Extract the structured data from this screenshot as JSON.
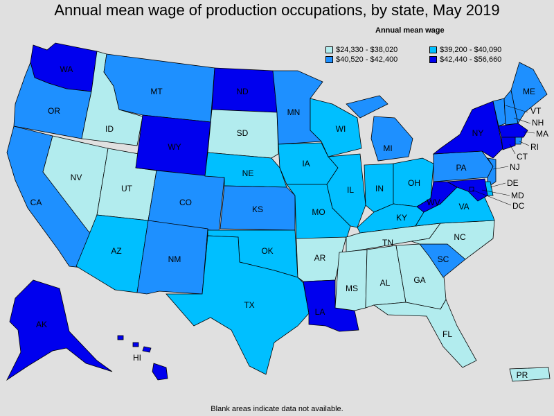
{
  "title": "Annual mean wage of production occupations, by state, May 2019",
  "legend": {
    "title": "Annual mean wage",
    "bins": [
      {
        "label": "$24,330 - $38,020",
        "color": "#b2ecee"
      },
      {
        "label": "$39,200 - $40,090",
        "color": "#00bfff"
      },
      {
        "label": "$40,520 - $42,400",
        "color": "#1e90ff"
      },
      {
        "label": "$42,440 - $56,660",
        "color": "#0000ee"
      }
    ]
  },
  "footnote": "Blank areas indicate data not available.",
  "states": [
    {
      "abbr": "WA",
      "bin": 3
    },
    {
      "abbr": "OR",
      "bin": 2
    },
    {
      "abbr": "CA",
      "bin": 2
    },
    {
      "abbr": "ID",
      "bin": 0
    },
    {
      "abbr": "NV",
      "bin": 0
    },
    {
      "abbr": "UT",
      "bin": 0
    },
    {
      "abbr": "AZ",
      "bin": 1
    },
    {
      "abbr": "MT",
      "bin": 2
    },
    {
      "abbr": "WY",
      "bin": 3
    },
    {
      "abbr": "CO",
      "bin": 2
    },
    {
      "abbr": "NM",
      "bin": 2
    },
    {
      "abbr": "ND",
      "bin": 3
    },
    {
      "abbr": "SD",
      "bin": 0
    },
    {
      "abbr": "NE",
      "bin": 1
    },
    {
      "abbr": "KS",
      "bin": 2
    },
    {
      "abbr": "OK",
      "bin": 1
    },
    {
      "abbr": "TX",
      "bin": 1
    },
    {
      "abbr": "MN",
      "bin": 2
    },
    {
      "abbr": "IA",
      "bin": 1
    },
    {
      "abbr": "MO",
      "bin": 1
    },
    {
      "abbr": "AR",
      "bin": 0
    },
    {
      "abbr": "LA",
      "bin": 3
    },
    {
      "abbr": "WI",
      "bin": 1
    },
    {
      "abbr": "IL",
      "bin": 1
    },
    {
      "abbr": "MI",
      "bin": 2
    },
    {
      "abbr": "IN",
      "bin": 1
    },
    {
      "abbr": "OH",
      "bin": 1
    },
    {
      "abbr": "KY",
      "bin": 1
    },
    {
      "abbr": "TN",
      "bin": 0
    },
    {
      "abbr": "MS",
      "bin": 0
    },
    {
      "abbr": "AL",
      "bin": 0
    },
    {
      "abbr": "GA",
      "bin": 0
    },
    {
      "abbr": "FL",
      "bin": 0
    },
    {
      "abbr": "SC",
      "bin": 2
    },
    {
      "abbr": "NC",
      "bin": 0
    },
    {
      "abbr": "VA",
      "bin": 1
    },
    {
      "abbr": "WV",
      "bin": 3
    },
    {
      "abbr": "PA",
      "bin": 2
    },
    {
      "abbr": "NY",
      "bin": 3
    },
    {
      "abbr": "VT",
      "bin": 2
    },
    {
      "abbr": "NH",
      "bin": 2
    },
    {
      "abbr": "ME",
      "bin": 2
    },
    {
      "abbr": "MA",
      "bin": 3
    },
    {
      "abbr": "RI",
      "bin": 2
    },
    {
      "abbr": "CT",
      "bin": 3
    },
    {
      "abbr": "NJ",
      "bin": 2
    },
    {
      "abbr": "DE",
      "bin": 1
    },
    {
      "abbr": "MD",
      "bin": 3
    },
    {
      "abbr": "DC",
      "bin": 3
    },
    {
      "abbr": "AK",
      "bin": 3
    },
    {
      "abbr": "HI",
      "bin": 3
    },
    {
      "abbr": "PR",
      "bin": 0
    }
  ]
}
